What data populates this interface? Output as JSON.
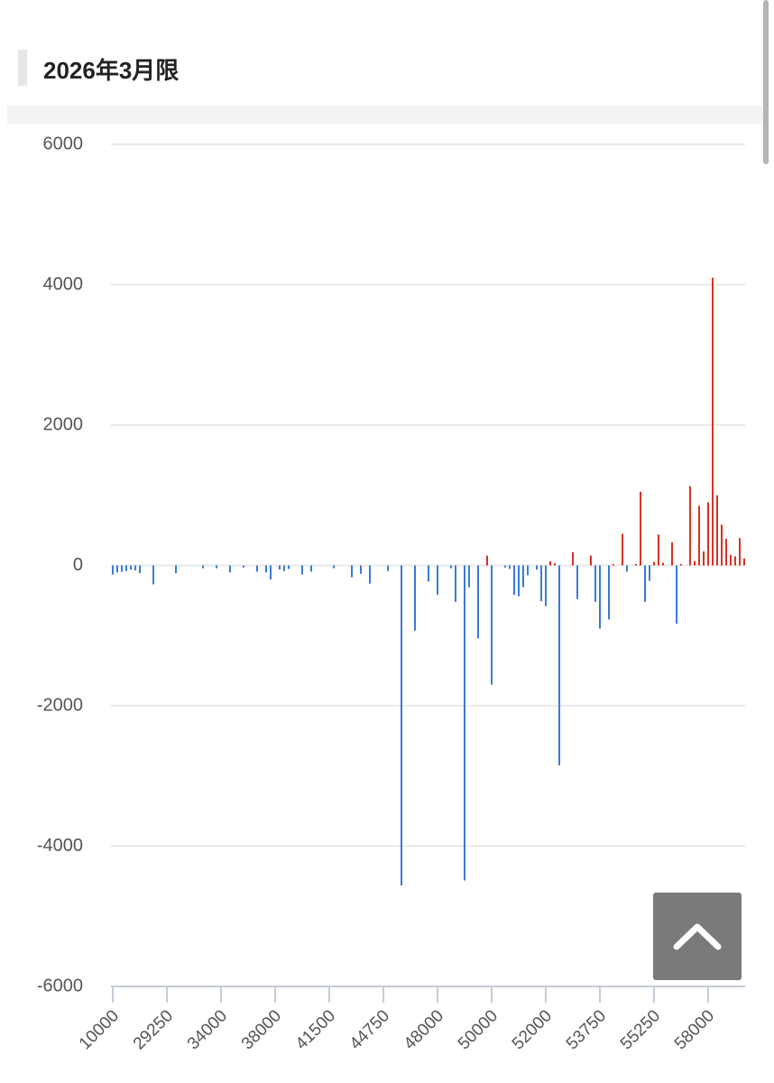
{
  "chart_data": {
    "type": "bar",
    "title": "2026年3月限",
    "categories": [
      "10000",
      null,
      null,
      null,
      null,
      null,
      null,
      null,
      null,
      null,
      null,
      null,
      "29250",
      null,
      null,
      null,
      null,
      null,
      null,
      null,
      null,
      null,
      null,
      null,
      "34000",
      null,
      null,
      null,
      null,
      null,
      null,
      null,
      null,
      null,
      null,
      null,
      "38000",
      null,
      null,
      null,
      null,
      null,
      null,
      null,
      null,
      null,
      null,
      null,
      "41500",
      null,
      null,
      null,
      null,
      null,
      null,
      null,
      null,
      null,
      null,
      null,
      "44750",
      null,
      null,
      null,
      null,
      null,
      null,
      null,
      null,
      null,
      null,
      null,
      "48000",
      null,
      null,
      null,
      null,
      null,
      null,
      null,
      null,
      null,
      null,
      null,
      "50000",
      null,
      null,
      null,
      null,
      null,
      null,
      null,
      null,
      null,
      null,
      null,
      "52000",
      null,
      null,
      null,
      null,
      null,
      null,
      null,
      null,
      null,
      null,
      null,
      "53750",
      null,
      null,
      null,
      null,
      null,
      null,
      null,
      null,
      null,
      null,
      null,
      "55250",
      null,
      null,
      null,
      null,
      null,
      null,
      null,
      null,
      null,
      null,
      null,
      "58000",
      null,
      null,
      null,
      null,
      null,
      null,
      null,
      null
    ],
    "values": [
      -130,
      -100,
      -90,
      -80,
      -60,
      -70,
      -110,
      null,
      null,
      -270,
      null,
      null,
      null,
      null,
      -110,
      null,
      null,
      null,
      null,
      null,
      -40,
      null,
      null,
      -40,
      null,
      null,
      -100,
      null,
      null,
      -30,
      null,
      null,
      -90,
      null,
      -100,
      -200,
      null,
      -60,
      -80,
      -50,
      null,
      null,
      -130,
      null,
      -90,
      null,
      null,
      null,
      null,
      -40,
      null,
      null,
      null,
      -170,
      null,
      -120,
      null,
      -260,
      null,
      null,
      null,
      -80,
      null,
      null,
      -4560,
      null,
      null,
      -930,
      null,
      null,
      -230,
      null,
      -420,
      null,
      null,
      -40,
      -520,
      null,
      -4490,
      -310,
      null,
      -1040,
      null,
      140,
      -1700,
      null,
      null,
      -30,
      -50,
      -420,
      -440,
      -310,
      -140,
      null,
      -60,
      -510,
      -580,
      60,
      30,
      -2850,
      null,
      null,
      190,
      -480,
      null,
      null,
      140,
      -520,
      -900,
      null,
      -770,
      20,
      null,
      450,
      -90,
      null,
      20,
      1050,
      -520,
      -220,
      50,
      440,
      40,
      null,
      330,
      -830,
      20,
      null,
      1130,
      60,
      850,
      200,
      900,
      4100,
      1000,
      580,
      380,
      150,
      130,
      390,
      100
    ],
    "positive_color": "#d93025",
    "negative_color": "#3a7bd5",
    "ylim": [
      -6000,
      6000
    ],
    "yticks": [
      -6000,
      -4000,
      -2000,
      0,
      2000,
      4000,
      6000
    ],
    "grid": true
  }
}
